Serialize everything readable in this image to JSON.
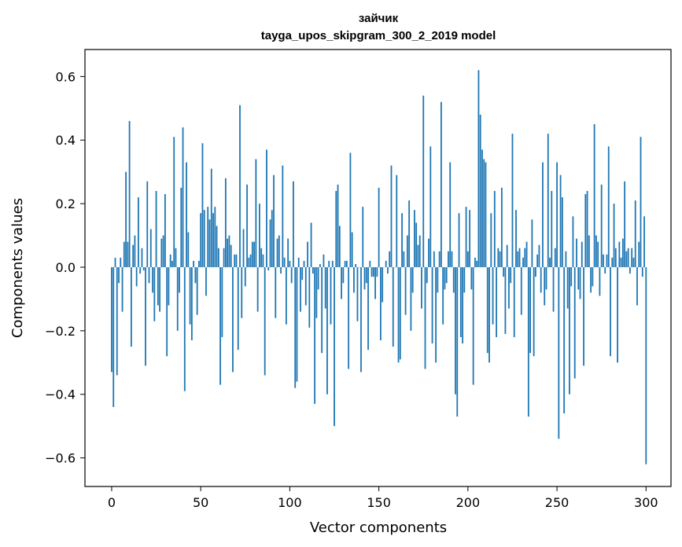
{
  "chart_data": {
    "type": "bar",
    "title": "зайчик",
    "subtitle": "tayga_upos_skipgram_300_2_2019 model",
    "xlabel": "Vector components",
    "ylabel": "Components values",
    "xlim": [
      -15,
      314
    ],
    "ylim": [
      -0.69,
      0.685
    ],
    "xticks": [
      0,
      50,
      100,
      150,
      200,
      250,
      300
    ],
    "xtick_labels": [
      "0",
      "50",
      "100",
      "150",
      "200",
      "250",
      "300"
    ],
    "yticks": [
      -0.6,
      -0.4,
      -0.2,
      0.0,
      0.2,
      0.4,
      0.6
    ],
    "ytick_labels": [
      "−0.6",
      "−0.4",
      "−0.2",
      "0.0",
      "0.2",
      "0.4",
      "0.6"
    ],
    "grid": false,
    "bar_color": "#1f77b4",
    "values": [
      -0.33,
      -0.44,
      0.03,
      -0.34,
      -0.05,
      0.03,
      -0.14,
      0.08,
      0.3,
      0.08,
      0.46,
      -0.25,
      0.07,
      0.1,
      -0.06,
      0.22,
      -0.02,
      0.06,
      -0.01,
      -0.31,
      0.27,
      -0.05,
      0.12,
      -0.08,
      -0.17,
      0.24,
      -0.12,
      -0.14,
      0.09,
      0.1,
      0.23,
      -0.28,
      -0.12,
      0.04,
      0.02,
      0.41,
      0.06,
      -0.2,
      -0.08,
      0.25,
      0.44,
      -0.39,
      0.33,
      0.11,
      -0.18,
      -0.23,
      0.02,
      -0.05,
      -0.15,
      0.02,
      0.17,
      0.39,
      0.18,
      -0.09,
      0.19,
      0.15,
      0.31,
      0.17,
      0.19,
      0.13,
      0.06,
      -0.37,
      -0.22,
      0.06,
      0.28,
      0.09,
      0.1,
      0.07,
      -0.33,
      0.04,
      0.04,
      -0.26,
      0.51,
      -0.16,
      0.12,
      -0.06,
      0.26,
      0.03,
      0.04,
      0.08,
      0.08,
      0.34,
      -0.14,
      0.2,
      0.06,
      0.04,
      -0.34,
      0.37,
      -0.01,
      0.15,
      0.18,
      0.29,
      -0.16,
      0.09,
      0.1,
      -0.02,
      0.32,
      0.03,
      -0.18,
      0.09,
      0.02,
      -0.05,
      0.27,
      -0.38,
      -0.36,
      0.03,
      -0.14,
      -0.04,
      0.02,
      -0.12,
      0.08,
      -0.19,
      0.14,
      -0.02,
      -0.43,
      -0.16,
      -0.07,
      0.01,
      -0.27,
      0.04,
      -0.13,
      -0.4,
      0.02,
      -0.18,
      0.02,
      -0.5,
      0.24,
      0.26,
      0.13,
      -0.1,
      -0.05,
      0.02,
      0.02,
      -0.32,
      0.36,
      0.11,
      -0.08,
      0.01,
      -0.17,
      0.0,
      -0.33,
      0.19,
      -0.07,
      -0.05,
      -0.26,
      0.02,
      -0.03,
      -0.03,
      -0.1,
      -0.03,
      0.25,
      -0.23,
      -0.11,
      0.0,
      0.02,
      -0.02,
      0.05,
      0.32,
      -0.25,
      0.0,
      0.29,
      -0.3,
      -0.29,
      0.17,
      0.05,
      -0.15,
      0.1,
      0.21,
      -0.2,
      -0.08,
      0.18,
      0.14,
      0.07,
      0.1,
      -0.13,
      0.54,
      -0.32,
      -0.05,
      0.09,
      0.38,
      -0.24,
      0.05,
      -0.3,
      -0.08,
      0.05,
      0.52,
      -0.18,
      -0.07,
      -0.05,
      0.05,
      0.33,
      0.05,
      -0.08,
      -0.4,
      -0.47,
      0.17,
      -0.22,
      -0.24,
      -0.08,
      0.19,
      0.05,
      0.18,
      -0.07,
      -0.37,
      0.03,
      0.02,
      0.62,
      0.48,
      0.37,
      0.34,
      0.33,
      -0.27,
      -0.3,
      0.17,
      -0.18,
      0.24,
      -0.22,
      0.06,
      0.05,
      0.25,
      -0.03,
      -0.21,
      0.07,
      -0.13,
      -0.05,
      0.42,
      -0.22,
      0.18,
      0.05,
      0.06,
      -0.15,
      0.03,
      0.06,
      0.08,
      -0.47,
      -0.27,
      0.15,
      -0.28,
      -0.03,
      0.04,
      0.07,
      -0.08,
      0.33,
      -0.12,
      -0.07,
      0.42,
      0.03,
      0.24,
      -0.14,
      0.06,
      0.33,
      -0.54,
      0.29,
      0.22,
      -0.46,
      0.05,
      -0.13,
      -0.4,
      -0.06,
      0.16,
      -0.35,
      0.09,
      -0.07,
      -0.1,
      0.08,
      -0.31,
      0.23,
      0.24,
      0.1,
      -0.08,
      -0.06,
      0.45,
      0.1,
      0.08,
      -0.09,
      0.26,
      0.04,
      -0.02,
      0.04,
      0.38,
      -0.28,
      0.03,
      0.2,
      0.06,
      -0.3,
      0.08,
      0.03,
      0.09,
      0.27,
      0.05,
      0.06,
      -0.02,
      0.06,
      0.03,
      0.21,
      -0.12,
      0.08,
      0.41,
      -0.03,
      0.16,
      -0.62
    ]
  }
}
